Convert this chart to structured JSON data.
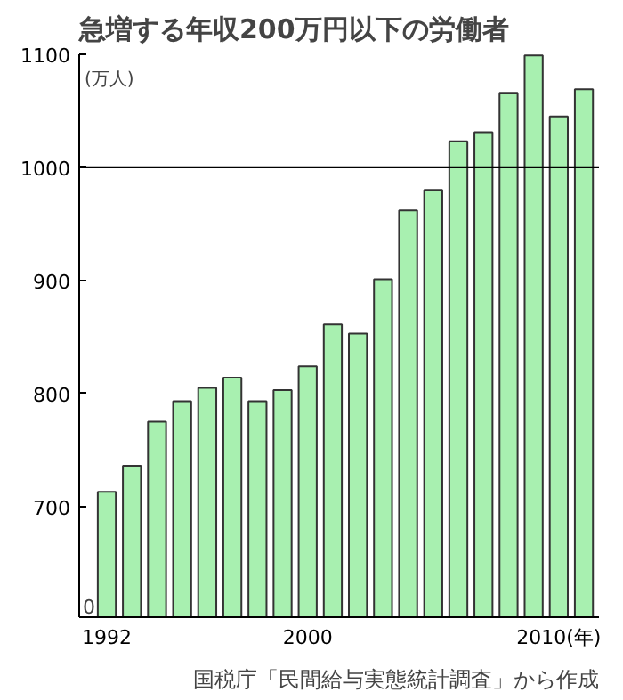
{
  "chart_data": {
    "type": "bar",
    "title": "急増する年収200万円以下の労働者",
    "ylabel": "(万人)",
    "x": [
      1992,
      1993,
      1994,
      1995,
      1996,
      1997,
      1998,
      1999,
      2000,
      2001,
      2002,
      2003,
      2004,
      2005,
      2006,
      2007,
      2008,
      2009,
      2010,
      2011
    ],
    "values": [
      713,
      736,
      775,
      793,
      805,
      814,
      793,
      803,
      824,
      861,
      853,
      901,
      962,
      980,
      1023,
      1031,
      1066,
      1099,
      1045,
      1069
    ],
    "color": "#a8f0b0",
    "xlim": [
      1990.9,
      2011.6
    ],
    "xticks": [
      1992,
      2000,
      {
        "value": 2010,
        "label": "2010(年)"
      }
    ],
    "ylim": [
      602,
      1100
    ],
    "yticks": [
      700,
      800,
      900,
      1000,
      1100
    ],
    "ref_lines": [
      {
        "axis": "y",
        "value": 1000,
        "label": null,
        "color": "#000000"
      }
    ],
    "annotations": [
      "0",
      "国税庁「民間給与実態統計調査」から作成"
    ],
    "grid": false
  }
}
